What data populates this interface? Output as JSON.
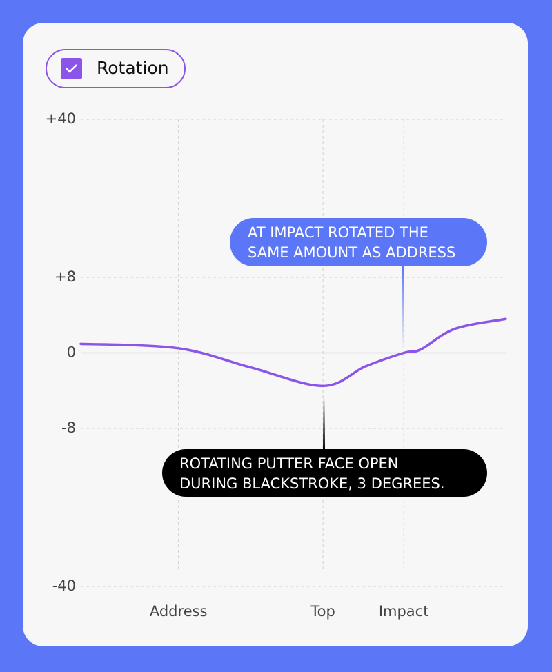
{
  "chart_data": {
    "type": "line",
    "x": [
      0,
      23,
      40,
      57,
      67,
      76,
      80,
      88,
      100
    ],
    "xlim": [
      0,
      100
    ],
    "xticks": [
      {
        "value": 23,
        "label": "Address"
      },
      {
        "value": 57,
        "label": "Top"
      },
      {
        "value": 76,
        "label": "Impact"
      }
    ],
    "ylim": [
      -40,
      40
    ],
    "yscale": "symlog",
    "yticks": [
      {
        "value": 40,
        "label": "+40"
      },
      {
        "value": 8,
        "label": "+8"
      },
      0,
      -8,
      -40
    ],
    "grid": true,
    "series": [
      {
        "name": "Rotation",
        "color": "#8b55e8",
        "values": [
          0.8,
          0.4,
          -1.3,
          -3.1,
          -1.2,
          0,
          0.3,
          2.2,
          3.2
        ]
      }
    ],
    "annotations": [
      {
        "lines": [
          "AT IMPACT ROTATED THE",
          "SAME AMOUNT AS ADDRESS"
        ],
        "color": "#5b76f7"
      },
      {
        "lines": [
          "ROTATING PUTTER FACE OPEN",
          "DURING BLACKSTROKE, 3 DEGREES."
        ],
        "color": "#000000"
      }
    ]
  }
}
